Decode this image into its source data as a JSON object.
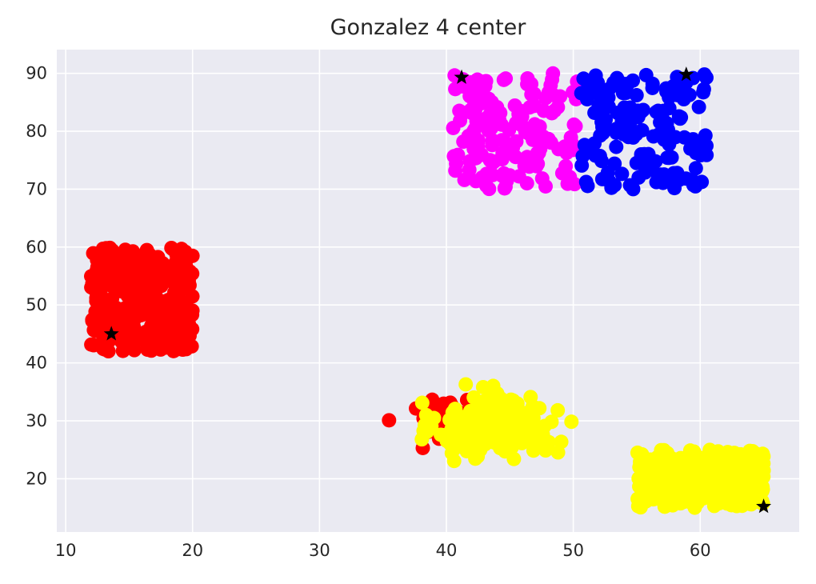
{
  "chart_data": {
    "type": "scatter",
    "title": "Gonzalez 4 center",
    "xlabel": "",
    "ylabel": "",
    "xlim": [
      9.3,
      67.8
    ],
    "ylim": [
      10.8,
      94.1
    ],
    "x_ticks": [
      10,
      20,
      30,
      40,
      50,
      60
    ],
    "y_ticks": [
      20,
      30,
      40,
      50,
      60,
      70,
      80,
      90
    ],
    "grid": true,
    "background": "#EAEAF2",
    "grid_color": "#FFFFFF",
    "legend": "none",
    "clusters": [
      {
        "color": "#FF0000",
        "region": "uniform",
        "x_range": [
          12,
          20
        ],
        "y_range": [
          42,
          60
        ],
        "count": 300
      },
      {
        "color": "#FF0000",
        "region": "gaussian",
        "center": [
          40,
          31
        ],
        "spread": [
          1.6,
          2.2
        ],
        "count": 45
      },
      {
        "color": "#FFFF00",
        "region": "gaussian",
        "center": [
          44,
          29
        ],
        "spread": [
          2.3,
          2.6
        ],
        "count": 230
      },
      {
        "color": "#FFFF00",
        "region": "uniform",
        "x_range": [
          55,
          65
        ],
        "y_range": [
          15,
          25
        ],
        "count": 260
      },
      {
        "color": "#FF00FF",
        "region": "uniform",
        "x_range": [
          40.5,
          50.5
        ],
        "y_range": [
          70,
          90
        ],
        "count": 150
      },
      {
        "color": "#0000FF",
        "region": "uniform",
        "x_range": [
          50.5,
          60.5
        ],
        "y_range": [
          70,
          90
        ],
        "count": 150
      }
    ],
    "centers": {
      "marker": "star",
      "color": "#000000",
      "points": [
        [
          13.6,
          45.0
        ],
        [
          41.2,
          89.3
        ],
        [
          58.9,
          89.8
        ],
        [
          65.0,
          15.2
        ]
      ]
    }
  }
}
